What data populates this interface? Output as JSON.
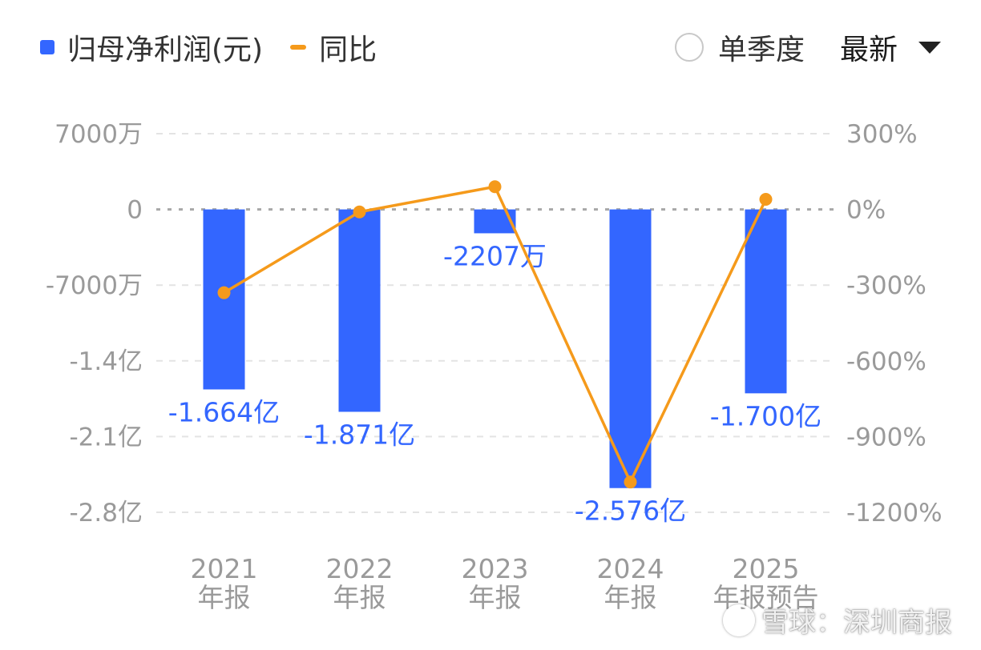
{
  "legend": {
    "bar_label": "归母净利润(元)",
    "line_label": "同比"
  },
  "controls": {
    "period_label": "单季度",
    "sort_label": "最新"
  },
  "watermark": {
    "text": "雪球：深圳商报"
  },
  "colors": {
    "bar": "#3366ff",
    "line": "#f59a1b",
    "axis_text": "#9a9a9a",
    "grid": "#e3e3e3",
    "zero_line": "#a8a8a8"
  },
  "chart_data": {
    "type": "bar",
    "categories": [
      "2021 年报",
      "2022 年报",
      "2023 年报",
      "2024 年报",
      "2025 年报预告"
    ],
    "category_lines": [
      [
        "2021",
        "年报"
      ],
      [
        "2022",
        "年报"
      ],
      [
        "2023",
        "年报"
      ],
      [
        "2024",
        "年报"
      ],
      [
        "2025",
        "年报预告"
      ]
    ],
    "series": [
      {
        "name": "归母净利润(元)",
        "type": "bar",
        "axis": "left",
        "values": [
          -166400000,
          -187100000,
          -22070000,
          -257600000,
          -170000000
        ],
        "labels": [
          "-1.664亿",
          "-1.871亿",
          "-2207万",
          "-2.576亿",
          "-1.700亿"
        ]
      },
      {
        "name": "同比",
        "type": "line",
        "axis": "right",
        "values": [
          -330,
          -10,
          90,
          -1080,
          40
        ]
      }
    ],
    "y_left": {
      "ticks": [
        70000000,
        0,
        -70000000,
        -140000000,
        -210000000,
        -280000000
      ],
      "tick_labels": [
        "7000万",
        "0",
        "-7000万",
        "-1.4亿",
        "-2.1亿",
        "-2.8亿"
      ],
      "ylim": [
        -280000000,
        70000000
      ]
    },
    "y_right": {
      "ticks": [
        300,
        0,
        -300,
        -600,
        -900,
        -1200
      ],
      "tick_labels": [
        "300%",
        "0%",
        "-300%",
        "-600%",
        "-900%",
        "-1200%"
      ],
      "ylim": [
        -1200,
        300
      ]
    },
    "grid": true,
    "legend_position": "top-left"
  }
}
